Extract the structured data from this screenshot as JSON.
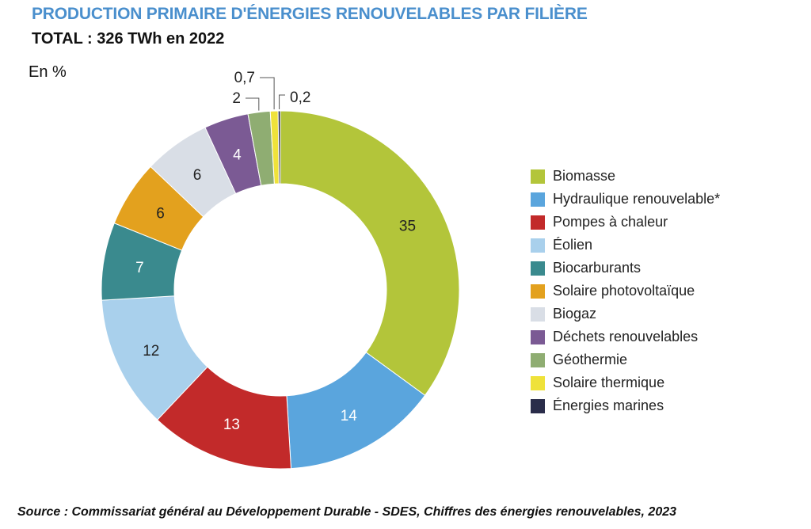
{
  "chart_data": {
    "type": "donut",
    "title": "PRODUCTION PRIMAIRE D'ÉNERGIES RENOUVELABLES PAR FILIÈRE",
    "subtitle": "TOTAL : 326 TWh en 2022",
    "unit_label": "En %",
    "slices": [
      {
        "name": "Biomasse",
        "value": 35,
        "label": "35",
        "color": "#b3c53a",
        "label_color": "#222222"
      },
      {
        "name": "Hydraulique renouvelable*",
        "value": 14,
        "label": "14",
        "color": "#5aa5dd",
        "label_color": "#ffffff"
      },
      {
        "name": "Pompes à chaleur",
        "value": 13,
        "label": "13",
        "color": "#c22a2a",
        "label_color": "#ffffff"
      },
      {
        "name": "Éolien",
        "value": 12,
        "label": "12",
        "color": "#a9d0ec",
        "label_color": "#222222"
      },
      {
        "name": "Biocarburants",
        "value": 7,
        "label": "7",
        "color": "#3a8a8e",
        "label_color": "#ffffff"
      },
      {
        "name": "Solaire photovoltaïque",
        "value": 6,
        "label": "6",
        "color": "#e3a11e",
        "label_color": "#222222"
      },
      {
        "name": "Biogaz",
        "value": 6,
        "label": "6",
        "color": "#d9dee6",
        "label_color": "#222222"
      },
      {
        "name": "Déchets renouvelables",
        "value": 4,
        "label": "4",
        "color": "#7b5a94",
        "label_color": "#ffffff"
      },
      {
        "name": "Géothermie",
        "value": 2,
        "label": "2",
        "color": "#8fad72",
        "label_color": "#222222"
      },
      {
        "name": "Solaire thermique",
        "value": 0.7,
        "label": "0,7",
        "color": "#efe23a",
        "label_color": "#222222"
      },
      {
        "name": "Énergies marines",
        "value": 0.2,
        "label": "0,2",
        "color": "#2a2d4a",
        "label_color": "#222222"
      }
    ]
  },
  "source": "Source : Commissariat général au Développement Durable - SDES, Chiffres des énergies renouvelables, 2023"
}
